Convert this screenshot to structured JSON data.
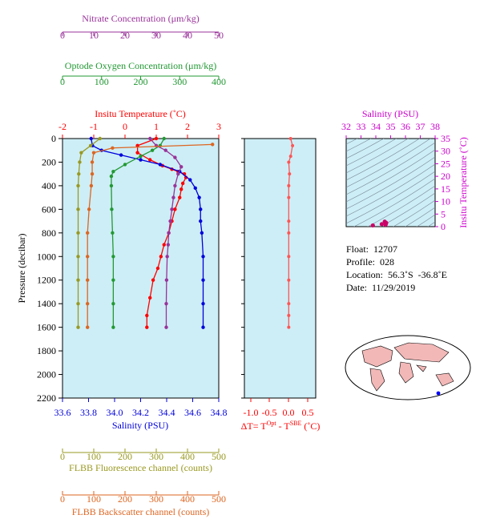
{
  "colors": {
    "temperature": "#ff0000",
    "salinity": "#0000dd",
    "oxygen": "#229933",
    "nitrate": "#993399",
    "fluorescence": "#999922",
    "backscatter": "#dd6622",
    "plot_bg": "#cdeef6",
    "delta_t": "#ff5555",
    "ts_title": "#cc00cc",
    "ts_curve": "#cc0066"
  },
  "axes": {
    "nitrate": {
      "title": "Nitrate Concentration (μm/kg)",
      "ticks": [
        "0",
        "10",
        "20",
        "30",
        "40",
        "50"
      ]
    },
    "oxygen": {
      "title": "Optode Oxygen Concentration (μm/kg)",
      "ticks": [
        "0",
        "100",
        "200",
        "300",
        "400"
      ]
    },
    "temperature": {
      "title": "Insitu Temperature (˚C)",
      "ticks": [
        "-2",
        "-1",
        "0",
        "1",
        "2",
        "3"
      ]
    },
    "pressure": {
      "title": "Pressure (decibar)",
      "ticks": [
        "0",
        "200",
        "400",
        "600",
        "800",
        "1000",
        "1200",
        "1400",
        "1600",
        "1800",
        "2000",
        "2200"
      ]
    },
    "salinity": {
      "title": "Salinity (PSU)",
      "ticks": [
        "33.6",
        "33.8",
        "34.0",
        "34.2",
        "34.4",
        "34.6",
        "34.8"
      ]
    },
    "delta_t": {
      "title": "ΔT= T",
      "sup1": "Opt",
      "mid": " - T",
      "sup2": "SBE",
      "end": " (˚C)",
      "ticks": [
        "-1.0",
        "-0.5",
        "0.0",
        "0.5"
      ]
    },
    "fluorescence": {
      "title": "FLBB Fluorescence channel (counts)",
      "ticks": [
        "0",
        "100",
        "200",
        "300",
        "400",
        "500"
      ]
    },
    "backscatter": {
      "title": "FLBB Backscatter channel (counts)",
      "ticks": [
        "0",
        "100",
        "200",
        "300",
        "400",
        "500"
      ]
    },
    "ts_salinity": {
      "title": "Salinity (PSU)",
      "ticks": [
        "32",
        "33",
        "34",
        "35",
        "36",
        "37",
        "38"
      ]
    },
    "ts_temperature": {
      "title": "Insitu Temperature (˚C)",
      "ticks": [
        "0",
        "5",
        "10",
        "15",
        "20",
        "25",
        "30",
        "35"
      ]
    }
  },
  "info": {
    "float": "Float:  12707",
    "profile": "Profile:  028",
    "location": "Location:  56.3˚S  -36.8˚E",
    "date": "Date:  11/29/2019"
  },
  "chart_data": [
    {
      "type": "line",
      "name": "profile",
      "y_axis": "Pressure (decibar)",
      "ylim": [
        2200,
        0
      ],
      "series": [
        {
          "name": "Temperature",
          "unit": "˚C",
          "xlim": [
            -2,
            3
          ],
          "x": [
            1.0,
            0.4,
            0.4,
            0.8,
            1.2,
            1.5,
            1.7,
            1.9,
            1.95,
            1.85,
            1.8,
            1.75,
            1.6,
            1.5,
            1.4,
            1.25,
            1.15,
            1.05,
            0.9,
            0.8,
            0.7,
            0.7
          ],
          "y": [
            0,
            60,
            120,
            180,
            230,
            260,
            280,
            300,
            330,
            380,
            430,
            500,
            600,
            700,
            800,
            900,
            1000,
            1100,
            1200,
            1350,
            1500,
            1600
          ]
        },
        {
          "name": "Salinity",
          "unit": "PSU",
          "xlim": [
            33.6,
            34.8
          ],
          "x": [
            33.82,
            33.83,
            33.9,
            34.05,
            34.2,
            34.35,
            34.5,
            34.58,
            34.62,
            34.65,
            34.66,
            34.66,
            34.67,
            34.68,
            34.68,
            34.68,
            34.68
          ],
          "y": [
            0,
            60,
            100,
            140,
            180,
            220,
            280,
            350,
            420,
            500,
            600,
            700,
            800,
            1000,
            1200,
            1400,
            1600
          ]
        },
        {
          "name": "Oxygen",
          "unit": "μm/kg",
          "xlim": [
            0,
            400
          ],
          "x": [
            260,
            250,
            230,
            200,
            160,
            130,
            125,
            125,
            126,
            128,
            130,
            130,
            130,
            130
          ],
          "y": [
            0,
            60,
            100,
            150,
            220,
            280,
            320,
            400,
            600,
            800,
            1000,
            1200,
            1400,
            1600
          ]
        },
        {
          "name": "Nitrate",
          "unit": "μm/kg",
          "xlim": [
            0,
            50
          ],
          "x": [
            28,
            30,
            33,
            36,
            38,
            37,
            36,
            35.5,
            35,
            34.5,
            34,
            33.8,
            33.5,
            33.3,
            33.2,
            33.2
          ],
          "y": [
            0,
            60,
            100,
            160,
            240,
            300,
            400,
            500,
            600,
            700,
            800,
            900,
            1000,
            1200,
            1400,
            1600
          ]
        },
        {
          "name": "Fluorescence",
          "unit": "counts",
          "xlim": [
            0,
            500
          ],
          "x": [
            120,
            90,
            60,
            55,
            52,
            50,
            50,
            50,
            50,
            50,
            50,
            50
          ],
          "y": [
            0,
            60,
            120,
            200,
            300,
            400,
            600,
            800,
            1000,
            1200,
            1400,
            1600
          ]
        },
        {
          "name": "Backscatter",
          "unit": "counts",
          "xlim": [
            0,
            500
          ],
          "x": [
            480,
            160,
            100,
            95,
            95,
            92,
            85,
            80,
            80,
            80,
            80,
            80
          ],
          "y": [
            50,
            80,
            120,
            200,
            300,
            400,
            600,
            800,
            1000,
            1200,
            1400,
            1600
          ]
        }
      ]
    },
    {
      "type": "line",
      "name": "delta_t",
      "xlim": [
        -1.1,
        0.6
      ],
      "ylim": [
        2200,
        0
      ],
      "series": [
        {
          "name": "ΔT",
          "x": [
            0.05,
            0.1,
            0.05,
            0.0,
            0.02,
            0.0,
            0.0,
            0.0,
            0.0,
            0.0,
            0.0,
            0.0,
            0.0,
            0.0
          ],
          "y": [
            0,
            60,
            150,
            200,
            300,
            400,
            500,
            700,
            800,
            1000,
            1200,
            1400,
            1500,
            1600
          ]
        }
      ]
    },
    {
      "type": "scatter",
      "name": "ts_diagram",
      "xlim": [
        32,
        38
      ],
      "ylim": [
        0,
        35
      ],
      "series": [
        {
          "name": "T-S",
          "x": [
            33.8,
            34.4,
            34.6,
            34.7,
            34.68,
            34.66
          ],
          "y": [
            0.5,
            1.0,
            2.0,
            1.5,
            1.2,
            0.8
          ]
        }
      ]
    }
  ]
}
